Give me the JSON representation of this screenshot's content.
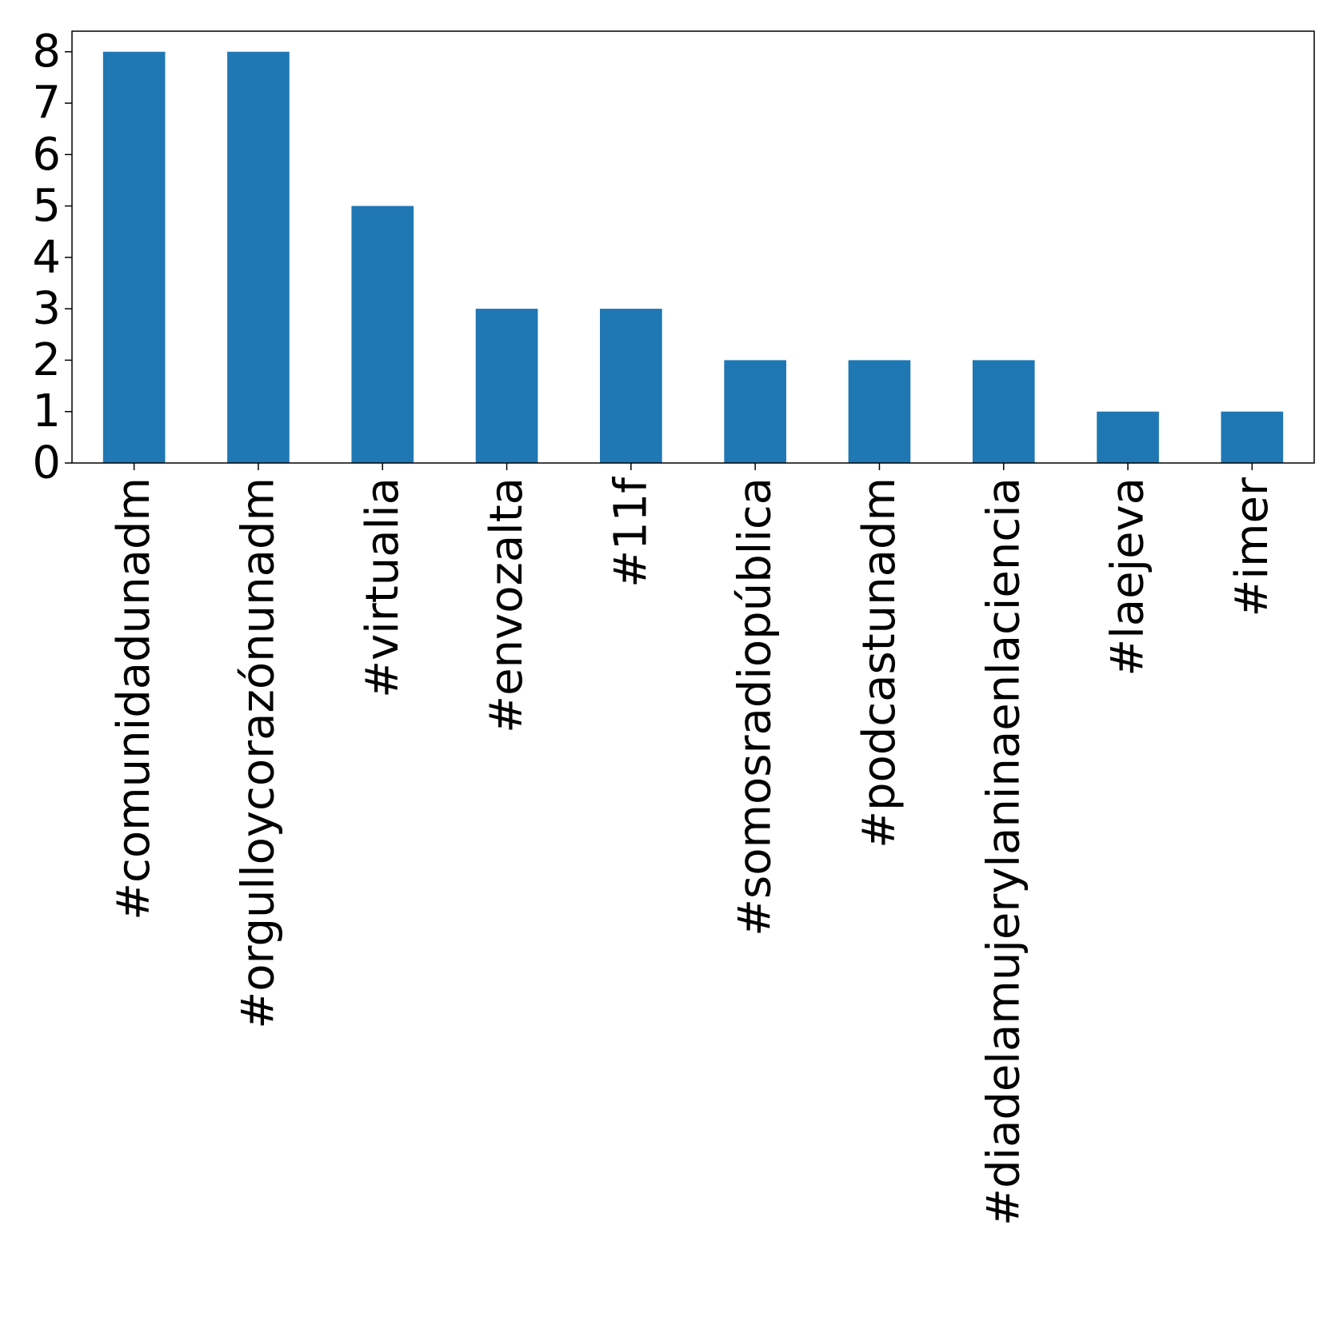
{
  "chart_data": {
    "type": "bar",
    "title": "",
    "xlabel": "",
    "ylabel": "",
    "categories": [
      "#comunidadunadm",
      "#orgulloycorazónunadm",
      "#virtualia",
      "#envozalta",
      "#11f",
      "#somosradiopública",
      "#podcastunadm",
      "#diadelamujerylaninaenlaciencia",
      "#laejeva",
      "#imer"
    ],
    "values": [
      8,
      8,
      5,
      3,
      3,
      2,
      2,
      2,
      1,
      1
    ],
    "ylim": [
      0,
      8.4
    ],
    "yticks": [
      0,
      1,
      2,
      3,
      4,
      5,
      6,
      7,
      8
    ],
    "grid": false,
    "legend": "none",
    "bar_color": "#1f77b4"
  }
}
